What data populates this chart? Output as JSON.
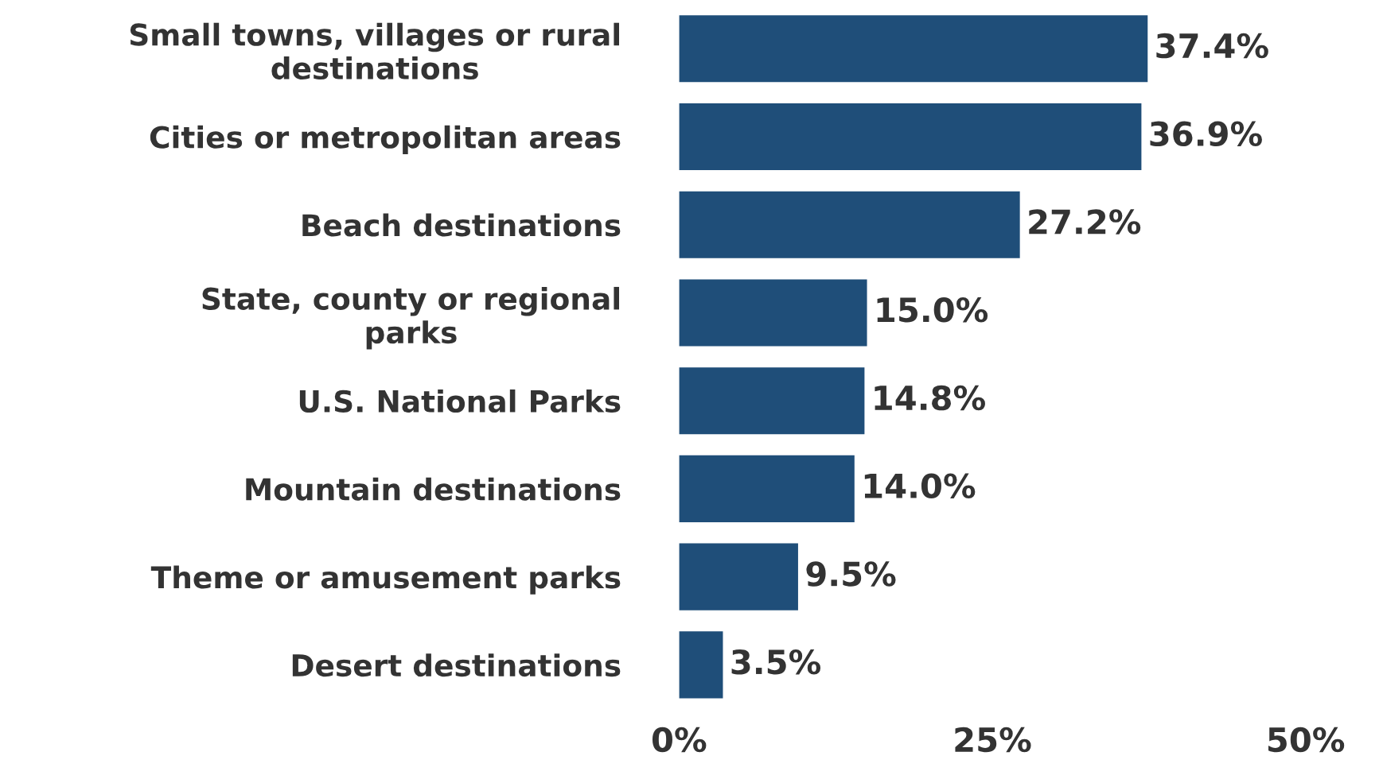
{
  "chart_data": {
    "type": "bar",
    "orientation": "horizontal",
    "categories": [
      "Small towns, villages or rural\ndestinations",
      "Cities or metropolitan areas",
      "Beach destinations",
      "State, county or regional\nparks",
      "U.S. National Parks",
      "Mountain destinations",
      "Theme or amusement parks",
      "Desert destinations"
    ],
    "values": [
      37.4,
      36.9,
      27.2,
      15.0,
      14.8,
      14.0,
      9.5,
      3.5
    ],
    "value_labels": [
      "37.4%",
      "36.9%",
      "27.2%",
      "15.0%",
      "14.8%",
      "14.0%",
      "9.5%",
      "3.5%"
    ],
    "color": "#1f4e79",
    "xlim": [
      0,
      50
    ],
    "xticks": [
      {
        "value": 0,
        "label": "0%"
      },
      {
        "value": 25,
        "label": "25%"
      },
      {
        "value": 50,
        "label": "50%"
      }
    ],
    "grid": false,
    "legend": false
  }
}
